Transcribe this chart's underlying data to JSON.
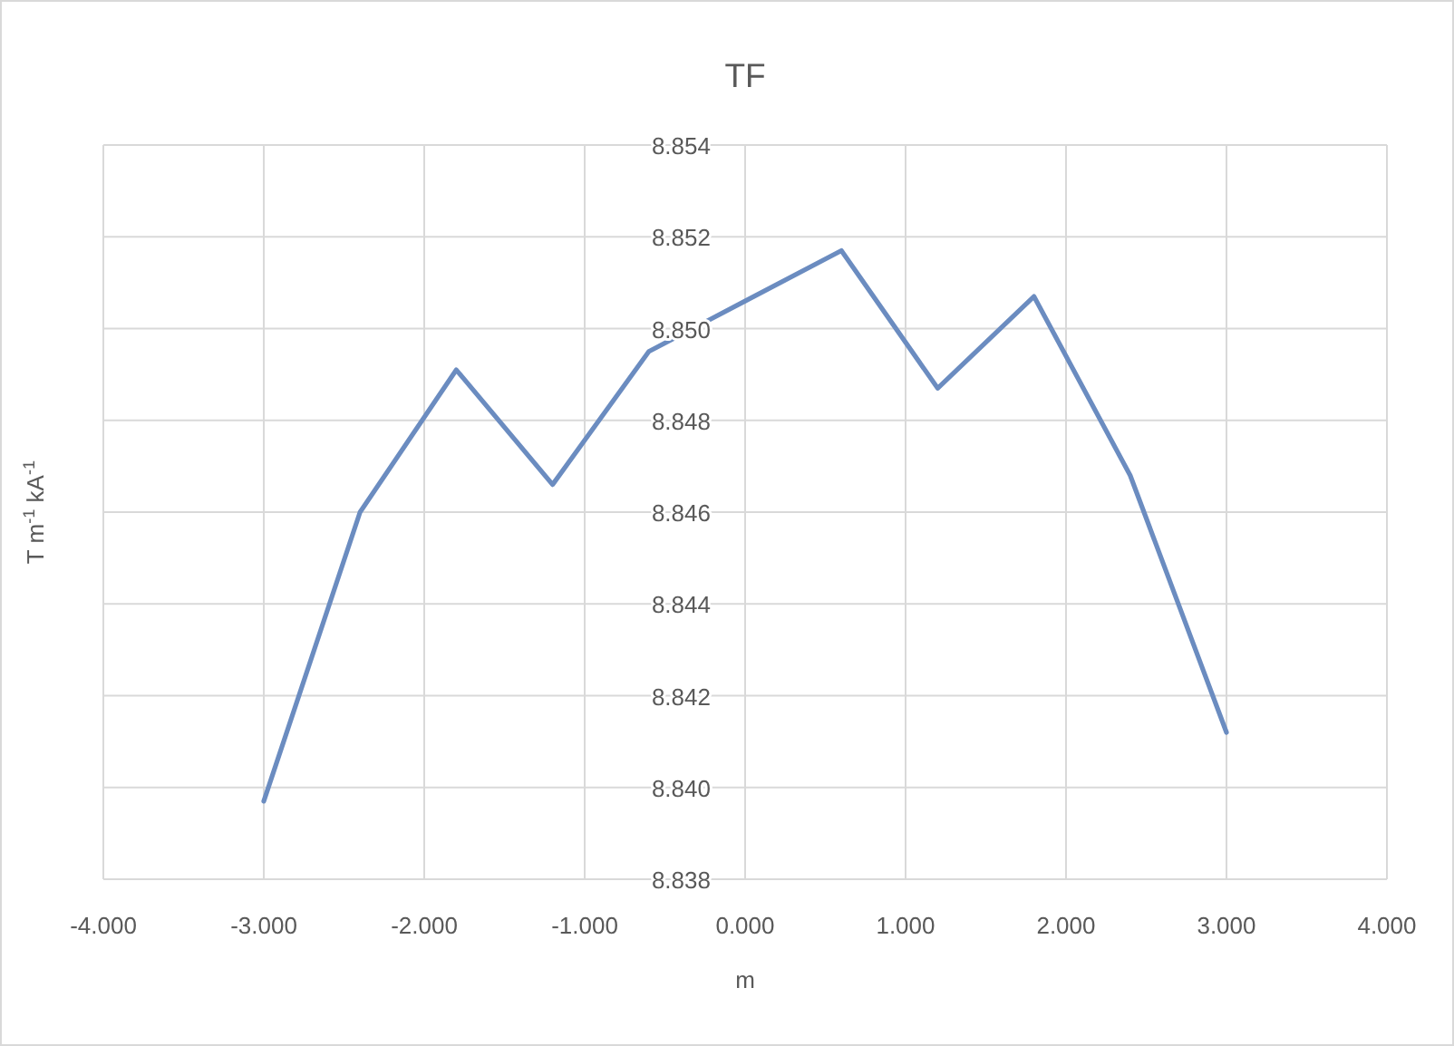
{
  "chart_data": {
    "type": "line",
    "title": "TF",
    "xlabel": "m",
    "ylabel": "T m$^{-1}$ kA$^{-1}$",
    "x": [
      -3,
      -2.4,
      -1.8,
      -1.2,
      -0.6,
      0,
      0.6,
      1.2,
      1.8,
      2.4,
      3
    ],
    "series": [
      {
        "color": "#6b8cc0",
        "values": [
          8.8397,
          8.846,
          8.8491,
          8.8466,
          8.8495,
          8.8506,
          8.8517,
          8.8487,
          8.8507,
          8.8468,
          8.8412
        ]
      }
    ],
    "xlim": [
      -4,
      4
    ],
    "xticks": [
      {
        "value": -4,
        "label": "-4.000"
      },
      {
        "value": -3,
        "label": "-3.000"
      },
      {
        "value": -2,
        "label": "-2.000"
      },
      {
        "value": -1,
        "label": "-1.000"
      },
      {
        "value": 0,
        "label": "0.000"
      },
      {
        "value": 1,
        "label": "1.000"
      },
      {
        "value": 2,
        "label": "2.000"
      },
      {
        "value": 3,
        "label": "3.000"
      },
      {
        "value": 4,
        "label": "4.000"
      }
    ],
    "ylim": [
      8.838,
      8.854
    ],
    "yticks": [
      {
        "value": 8.838,
        "label": "8.838"
      },
      {
        "value": 8.84,
        "label": "8.840"
      },
      {
        "value": 8.842,
        "label": "8.842"
      },
      {
        "value": 8.844,
        "label": "8.844"
      },
      {
        "value": 8.846,
        "label": "8.846"
      },
      {
        "value": 8.848,
        "label": "8.848"
      },
      {
        "value": 8.85,
        "label": "8.850"
      },
      {
        "value": 8.852,
        "label": "8.852"
      },
      {
        "value": 8.854,
        "label": "8.854"
      }
    ],
    "grid": true,
    "marker": "none",
    "line_style": "solid"
  }
}
